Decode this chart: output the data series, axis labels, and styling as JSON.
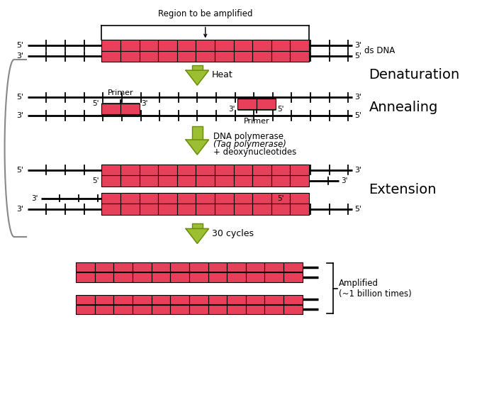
{
  "bg_color": "#ffffff",
  "pink_color": "#E8405A",
  "strand_color": "#000000",
  "arrow_fill": "#9BBF30",
  "arrow_edge": "#6A8A10",
  "figsize": [
    6.73,
    5.57
  ],
  "dpi": 100,
  "denaturation_label": "Denaturation",
  "annealing_label": "Annealing",
  "extension_label": "Extension",
  "heat_label": "Heat",
  "polymerase_line1": "DNA polymerase",
  "polymerase_line2": "(Taq polymerase)",
  "polymerase_line3": "+ deoxynucleotides",
  "cycles_label": "30 cycles",
  "amplified_label": "Amplified\n(~1 billion times)",
  "region_label": "Region to be amplified",
  "dsdna_label": "ds DNA",
  "primer_label": "Primer"
}
